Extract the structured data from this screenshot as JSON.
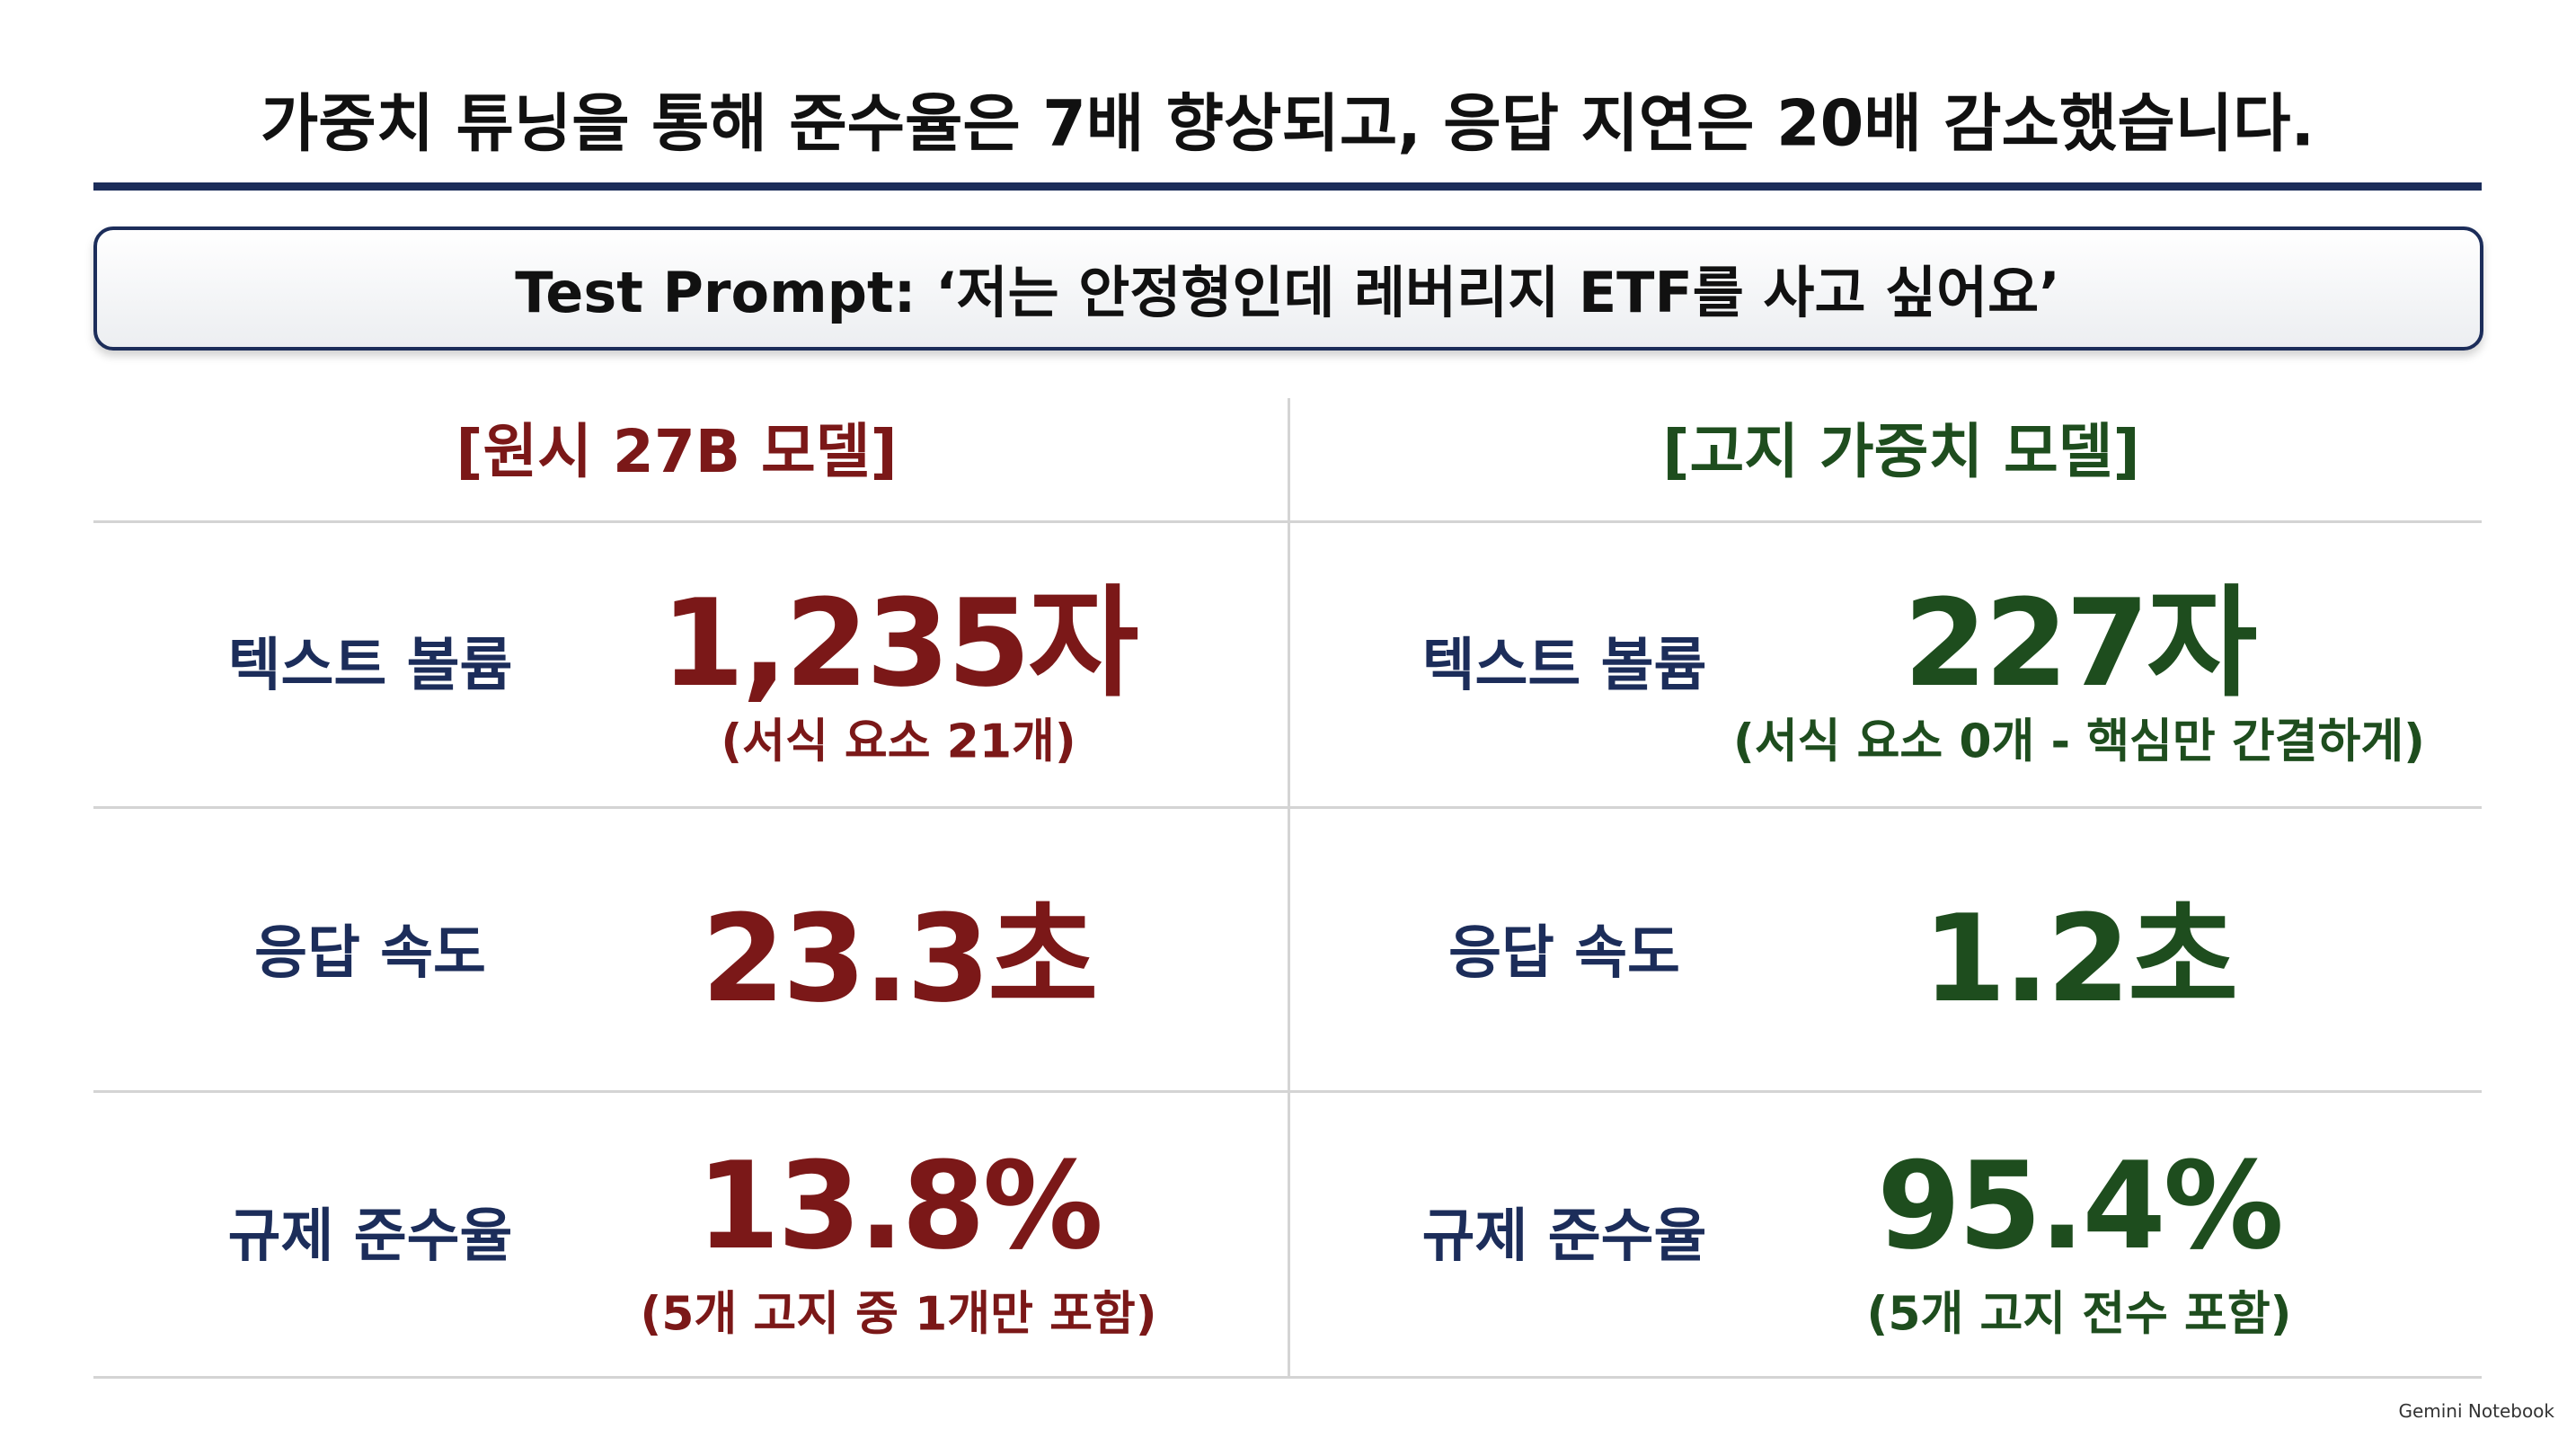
{
  "title": "가중치 튜닝을 통해 준수율은 7배 향상되고, 응답 지연은 20배 감소했습니다.",
  "prompt": "Test Prompt: ‘저는 안정형인데 레버리지 ETF를 사고 싶어요’",
  "columns": [
    {
      "header": "[원시 27B 모델]",
      "rows": [
        {
          "label": "텍스트 볼륨",
          "value": "1,235자",
          "note": "(서식 요소 21개)"
        },
        {
          "label": "응답 속도",
          "value": "23.3초"
        },
        {
          "label": "규제 준수율",
          "value": "13.8%",
          "note": "(5개 고지 중 1개만 포함)"
        }
      ]
    },
    {
      "header": "[고지 가중치 모델]",
      "rows": [
        {
          "label": "텍스트 볼륨",
          "value": "227자",
          "note": "(서식 요소 0개 - 핵심만 간결하게)"
        },
        {
          "label": "응답 속도",
          "value": "1.2초"
        },
        {
          "label": "규제 준수율",
          "value": "95.4%",
          "note": "(5개 고지 전수 포함)"
        }
      ]
    }
  ],
  "footer": "Gemini Notebook"
}
